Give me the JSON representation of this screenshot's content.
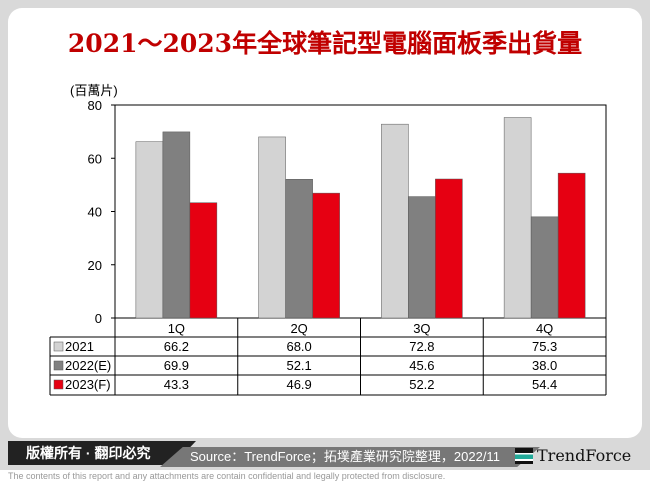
{
  "title": "2021～2023年全球筆記型電腦面板季出貨量",
  "footer": {
    "copyright": "版權所有 · 翻印必究",
    "source": "Source：TrendForce；拓墣產業研究院整理，2022/11",
    "logo": "TrendForce",
    "disclaimer": "The contents of this report and any attachments are contain confidential and legally protected from disclosure."
  },
  "chart_data": {
    "type": "bar",
    "title": "2021～2023年全球筆記型電腦面板季出貨量",
    "ylabel": "(百萬片)",
    "ylim": [
      0,
      80
    ],
    "yticks": [
      0,
      20,
      40,
      60,
      80
    ],
    "categories": [
      "1Q",
      "2Q",
      "3Q",
      "4Q"
    ],
    "series": [
      {
        "name": "2021",
        "color": "#d3d3d3",
        "values": [
          66.2,
          68.0,
          72.8,
          75.3
        ]
      },
      {
        "name": "2022(E)",
        "color": "#808080",
        "values": [
          69.9,
          52.1,
          45.6,
          38.0
        ]
      },
      {
        "name": "2023(F)",
        "color": "#e60012",
        "values": [
          43.3,
          46.9,
          52.2,
          54.4
        ]
      }
    ]
  }
}
